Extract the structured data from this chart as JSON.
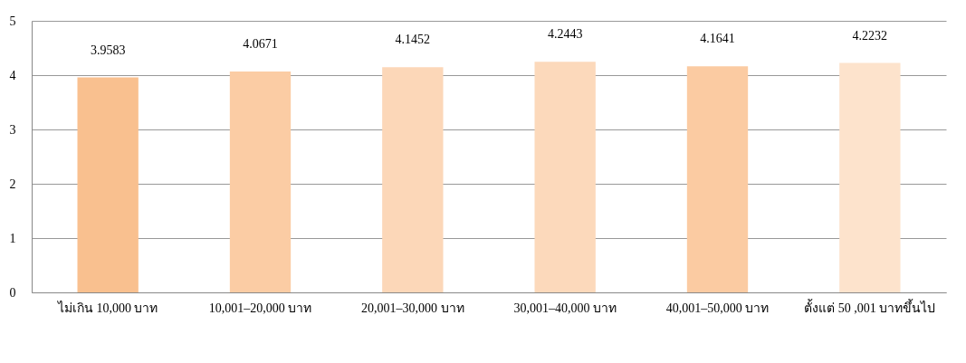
{
  "chart_data": {
    "type": "bar",
    "categories": [
      "ไม่เกิน 10,000 บาท",
      "10,001–20,000 บาท",
      "20,001–30,000 บาท",
      "30,001–40,000 บาท",
      "40,001–50,000 บาท",
      "ตั้งแต่ 50 ,001 บาทขึ้นไป"
    ],
    "values": [
      3.9583,
      4.0671,
      4.1452,
      4.2443,
      4.1641,
      4.2232
    ],
    "colors": [
      "#f9c08f",
      "#fbcca4",
      "#fcd7b8",
      "#fcd9bb",
      "#fbcba2",
      "#fde3cc"
    ],
    "ylim": [
      0,
      5
    ],
    "yticks": [
      0,
      1,
      2,
      3,
      4,
      5
    ],
    "grid": "y",
    "data_labels": true
  }
}
